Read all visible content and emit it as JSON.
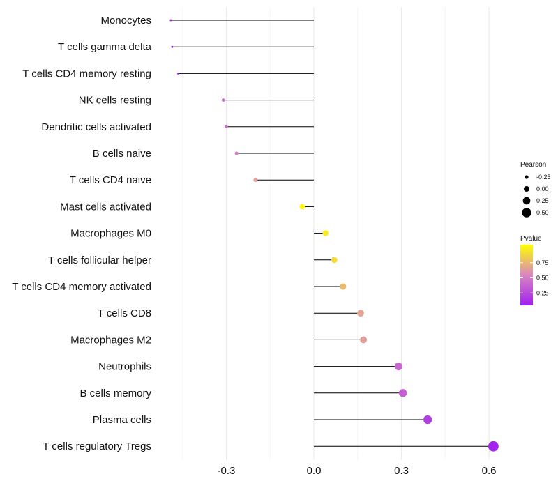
{
  "chart_data": {
    "type": "lollipop",
    "title": "",
    "xlabel": "",
    "ylabel": "",
    "xlim": [
      -0.5,
      0.65
    ],
    "xticks": [
      -0.3,
      0.0,
      0.3,
      0.6
    ],
    "xtick_labels": [
      "-0.3",
      "0.0",
      "0.3",
      "0.6"
    ],
    "grid": true,
    "legend_position": "right",
    "categories": [
      "Monocytes",
      "T cells gamma delta",
      "T cells CD4 memory resting",
      "NK cells resting",
      "Dendritic cells activated",
      "B cells naive",
      "T cells CD4 naive",
      "Mast cells activated",
      "Macrophages M0",
      "T cells follicular helper",
      "T cells CD4 memory activated",
      "T cells CD8",
      "Macrophages M2",
      "Neutrophils",
      "B cells memory",
      "Plasma cells",
      "T cells regulatory  Tregs"
    ],
    "pearson": [
      -0.49,
      -0.485,
      -0.465,
      -0.31,
      -0.3,
      -0.265,
      -0.2,
      -0.04,
      0.04,
      0.07,
      0.1,
      0.16,
      0.17,
      0.29,
      0.305,
      0.39,
      0.615
    ],
    "pvalue": [
      0.02,
      0.02,
      0.05,
      0.35,
      0.38,
      0.45,
      0.6,
      0.98,
      0.92,
      0.85,
      0.72,
      0.62,
      0.6,
      0.35,
      0.32,
      0.15,
      0.02
    ],
    "size_legend": {
      "title": "Pearson",
      "labels": [
        "-0.25",
        "0.00",
        "0.25",
        "0.50"
      ],
      "values": [
        -0.25,
        0.0,
        0.25,
        0.5
      ]
    },
    "color_legend": {
      "title": "Pvalue",
      "labels": [
        "0.75",
        "0.50",
        "0.25"
      ],
      "values": [
        0.75,
        0.5,
        0.25
      ],
      "range": [
        0.0,
        1.0
      ],
      "color_low": "#a020f0",
      "color_mid": "#d986c0",
      "color_high": "#ffff00"
    }
  }
}
